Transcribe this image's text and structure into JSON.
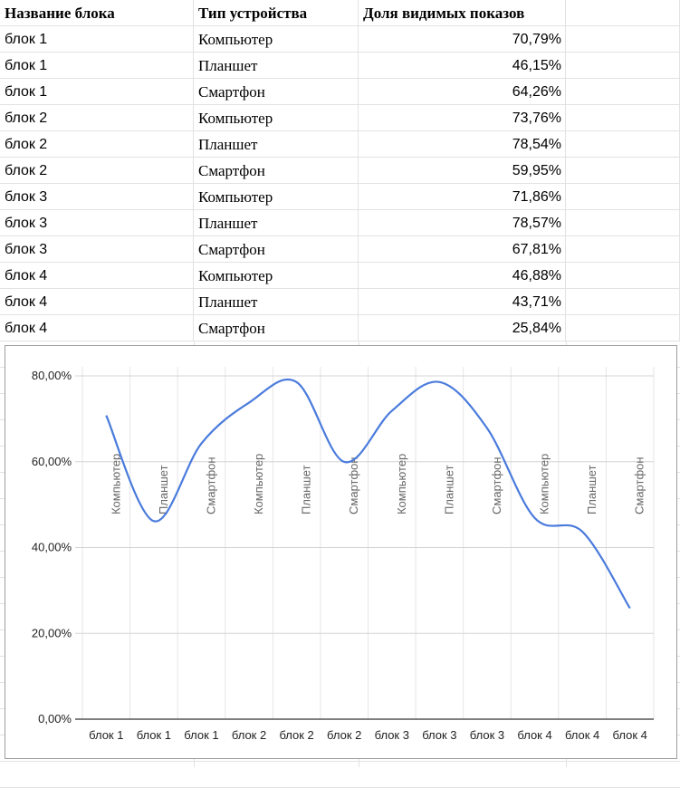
{
  "table": {
    "headers": [
      "Название блока",
      "Тип устройства",
      "Доля видимых показов"
    ],
    "rows": [
      [
        "блок 1",
        "Компьютер",
        "70,79%"
      ],
      [
        "блок 1",
        "Планшет",
        "46,15%"
      ],
      [
        "блок 1",
        "Смартфон",
        "64,26%"
      ],
      [
        "блок 2",
        "Компьютер",
        "73,76%"
      ],
      [
        "блок 2",
        "Планшет",
        "78,54%"
      ],
      [
        "блок 2",
        "Смартфон",
        "59,95%"
      ],
      [
        "блок 3",
        "Компьютер",
        "71,86%"
      ],
      [
        "блок 3",
        "Планшет",
        "78,57%"
      ],
      [
        "блок 3",
        "Смартфон",
        "67,81%"
      ],
      [
        "блок 4",
        "Компьютер",
        "46,88%"
      ],
      [
        "блок 4",
        "Планшет",
        "43,71%"
      ],
      [
        "блок 4",
        "Смартфон",
        "25,84%"
      ]
    ]
  },
  "chart_data": {
    "type": "line",
    "smooth": true,
    "categories": [
      "блок 1",
      "блок 1",
      "блок 1",
      "блок 2",
      "блок 2",
      "блок 2",
      "блок 3",
      "блок 3",
      "блок 3",
      "блок 4",
      "блок 4",
      "блок 4"
    ],
    "point_labels": [
      "Компьютер",
      "Планшет",
      "Смартфон",
      "Компьютер",
      "Планшет",
      "Смартфон",
      "Компьютер",
      "Планшет",
      "Смартфон",
      "Компьютер",
      "Планшет",
      "Смартфон"
    ],
    "values": [
      70.79,
      46.15,
      64.26,
      73.76,
      78.54,
      59.95,
      71.86,
      78.57,
      67.81,
      46.88,
      43.71,
      25.84
    ],
    "yticks": [
      "0,00%",
      "20,00%",
      "40,00%",
      "60,00%",
      "80,00%"
    ],
    "ylim": [
      0,
      80
    ],
    "grid": true,
    "line_color": "#4a7bdc",
    "title": "",
    "xlabel": "",
    "ylabel": ""
  }
}
